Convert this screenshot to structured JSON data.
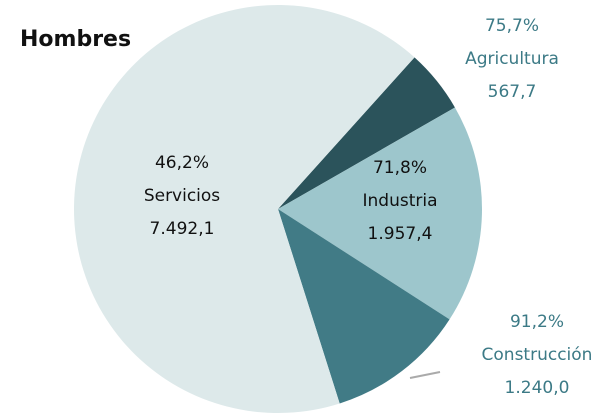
{
  "chart_data": {
    "type": "pie",
    "title": "Hombres",
    "categories": [
      "Agricultura",
      "Industria",
      "Construcción",
      "Servicios"
    ],
    "values": [
      567.7,
      1957.4,
      1240.0,
      7492.1
    ],
    "value_labels": [
      "567,7",
      "1.957,4",
      "1.240,0",
      "7.492,1"
    ],
    "percent_labels": [
      "75,7%",
      "71,8%",
      "91,2%",
      "46,2%"
    ],
    "colors": [
      "#2b535b",
      "#9dc6cc",
      "#417b86",
      "#dde9ea"
    ]
  }
}
